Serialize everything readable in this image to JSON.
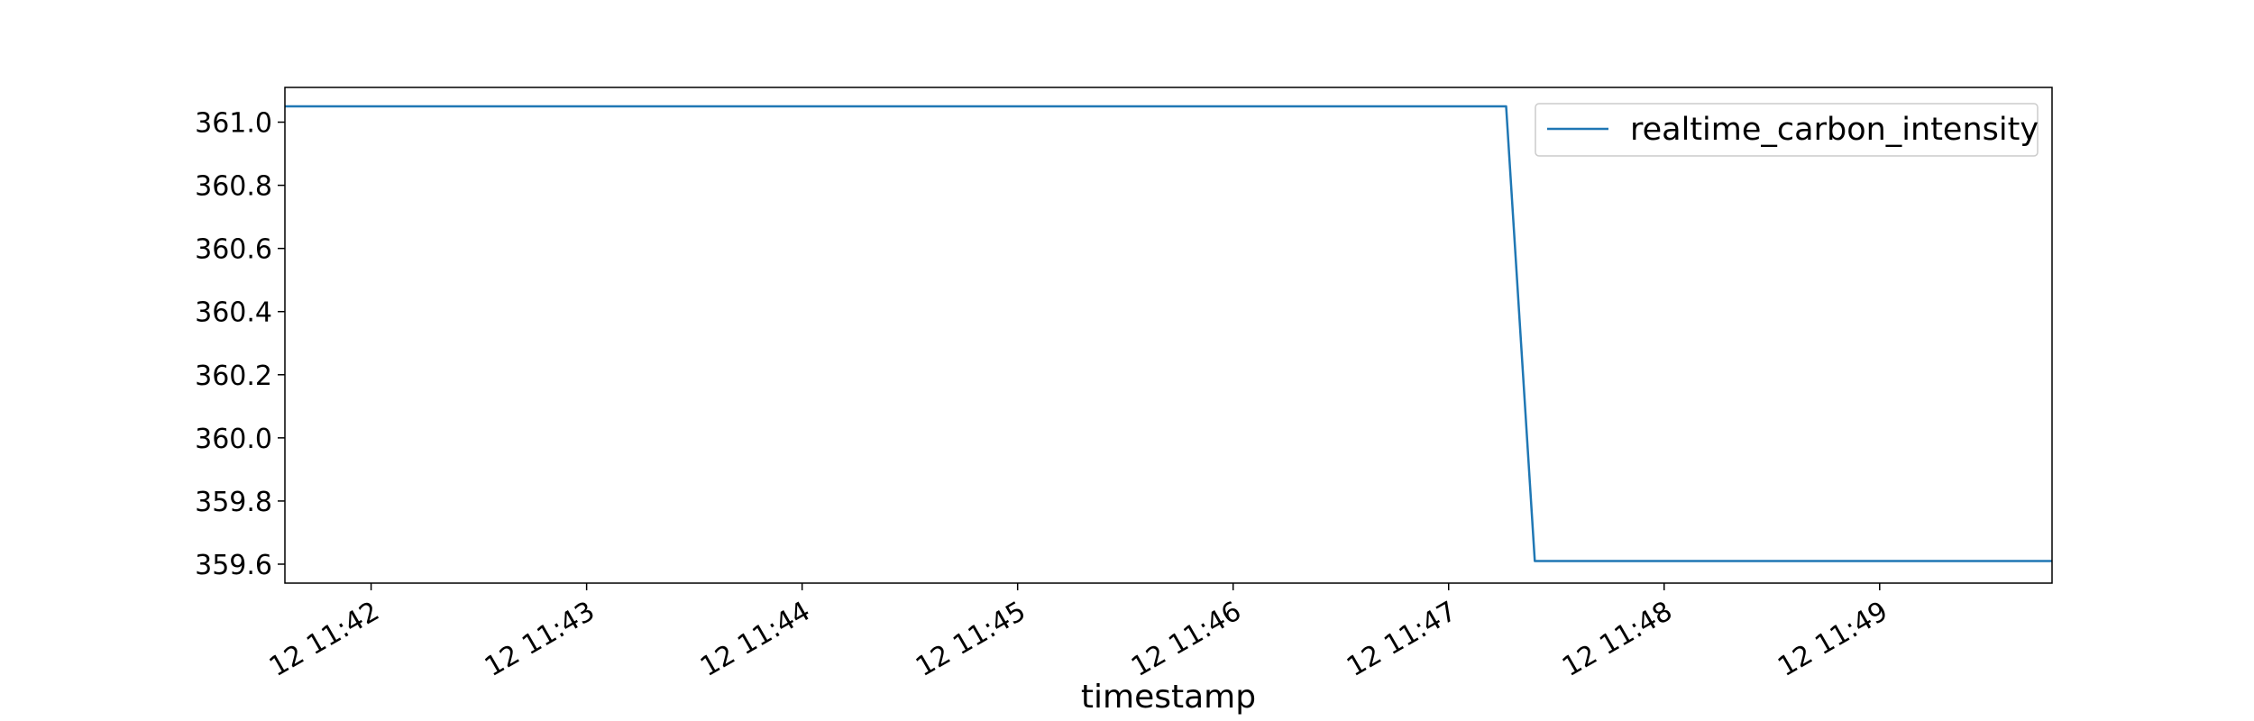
{
  "chart_data": {
    "type": "line",
    "title": "",
    "xlabel": "timestamp",
    "ylabel": "",
    "x_tick_labels": [
      "12 11:42",
      "12 11:43",
      "12 11:44",
      "12 11:45",
      "12 11:46",
      "12 11:47",
      "12 11:48",
      "12 11:49"
    ],
    "y_tick_labels": [
      "359.6",
      "359.8",
      "360.0",
      "360.2",
      "360.4",
      "360.6",
      "360.8",
      "361.0"
    ],
    "y_ticks": [
      359.6,
      359.8,
      360.0,
      360.2,
      360.4,
      360.6,
      360.8,
      361.0
    ],
    "ylim": [
      359.54,
      361.11
    ],
    "xlim": [
      "11:41:36",
      "11:49:48"
    ],
    "grid": false,
    "legend_position": "top-right",
    "series": [
      {
        "name": "realtime_carbon_intensity",
        "color": "#1f77b4",
        "x": [
          "11:41:36",
          "11:47:16",
          "11:47:24",
          "11:49:48"
        ],
        "y": [
          361.05,
          361.05,
          359.61,
          359.61
        ]
      }
    ]
  }
}
